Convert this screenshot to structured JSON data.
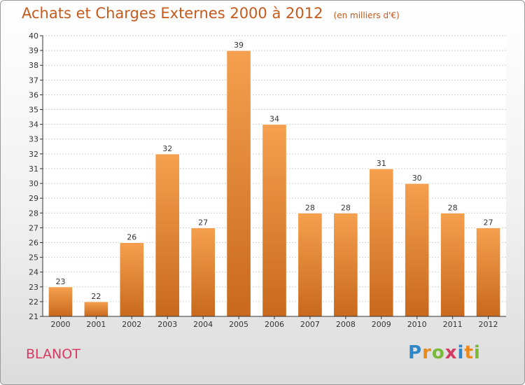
{
  "chart_data": {
    "type": "bar",
    "title": "Achats et Charges Externes 2000 à 2012",
    "subtitle": "(en milliers d'€)",
    "categories": [
      "2000",
      "2001",
      "2002",
      "2003",
      "2004",
      "2005",
      "2006",
      "2007",
      "2008",
      "2009",
      "2010",
      "2011",
      "2012"
    ],
    "values": [
      23,
      22,
      26,
      32,
      27,
      39,
      34,
      28,
      28,
      31,
      30,
      28,
      27
    ],
    "ylim": [
      21,
      40
    ],
    "yticks": [
      21,
      22,
      23,
      24,
      25,
      26,
      27,
      28,
      29,
      30,
      31,
      32,
      33,
      34,
      35,
      36,
      37,
      38,
      39,
      40
    ],
    "grid": true,
    "xlabel": "",
    "ylabel": "",
    "colors": {
      "bar_top": "#f5a04f",
      "bar_bottom": "#c8691d",
      "title": "#c55a1d",
      "axis": "#333333"
    }
  },
  "footer": {
    "town": "BLANOT",
    "brand_letters": [
      "P",
      "r",
      "o",
      "x",
      "i",
      "t",
      "i"
    ],
    "brand_colors": [
      "#2f86c8",
      "#e98a1b",
      "#7ab83a",
      "#d63a63",
      "#2f86c8",
      "#e98a1b",
      "#7ab83a"
    ]
  }
}
